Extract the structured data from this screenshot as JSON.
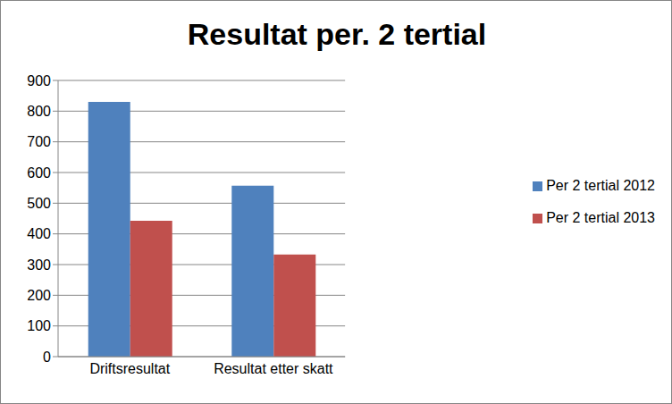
{
  "chart_data": {
    "type": "bar",
    "title": "Resultat per. 2 tertial",
    "categories": [
      "Driftsresultat",
      "Resultat etter skatt"
    ],
    "series": [
      {
        "name": "Per 2 tertial 2012",
        "color": "#4f81bd",
        "values": [
          830,
          557
        ]
      },
      {
        "name": "Per 2 tertial 2013",
        "color": "#c0504d",
        "values": [
          443,
          333
        ]
      }
    ],
    "ylim": [
      0,
      900
    ],
    "yticks": [
      0,
      100,
      200,
      300,
      400,
      500,
      600,
      700,
      800,
      900
    ],
    "grid": true,
    "legend": "right"
  }
}
